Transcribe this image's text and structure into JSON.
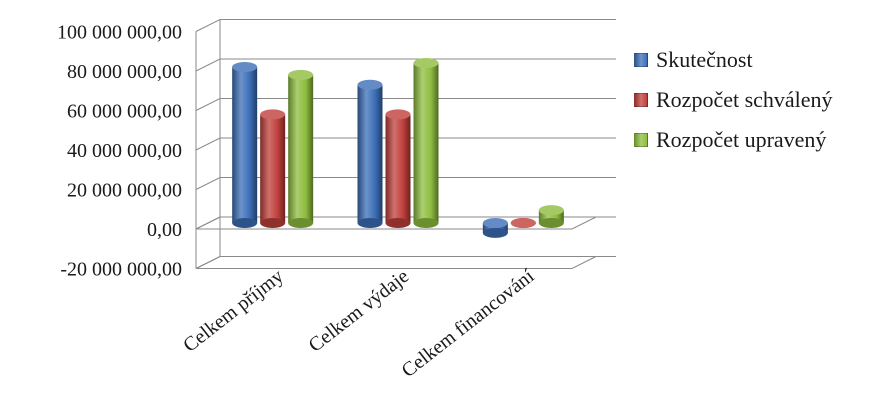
{
  "chart_data": {
    "type": "bar",
    "categories": [
      "Celkem příjmy",
      "Celkem výdaje",
      "Celkem financování"
    ],
    "series": [
      {
        "name": "Skutečnost",
        "values": [
          79000000,
          70000000,
          -5000000
        ],
        "color": "#3c6fb8"
      },
      {
        "name": "Rozpočet schválený",
        "values": [
          55000000,
          55000000,
          0
        ],
        "color": "#c0403c"
      },
      {
        "name": "Rozpočet upravený",
        "values": [
          75000000,
          81000000,
          6500000
        ],
        "color": "#8ebd3f"
      }
    ],
    "ylim": [
      -20000000,
      100000000
    ],
    "yticks": [
      100000000,
      80000000,
      60000000,
      40000000,
      20000000,
      0,
      -20000000
    ],
    "ytick_labels": [
      "100 000 000,00",
      "80 000 000,00",
      "60 000 000,00",
      "40 000 000,00",
      "20 000 000,00",
      "0,00",
      "-20 000 000,00"
    ],
    "title": "",
    "xlabel": "",
    "ylabel": "",
    "grid": true,
    "legend_position": "right",
    "style": "3d-cylinder"
  }
}
